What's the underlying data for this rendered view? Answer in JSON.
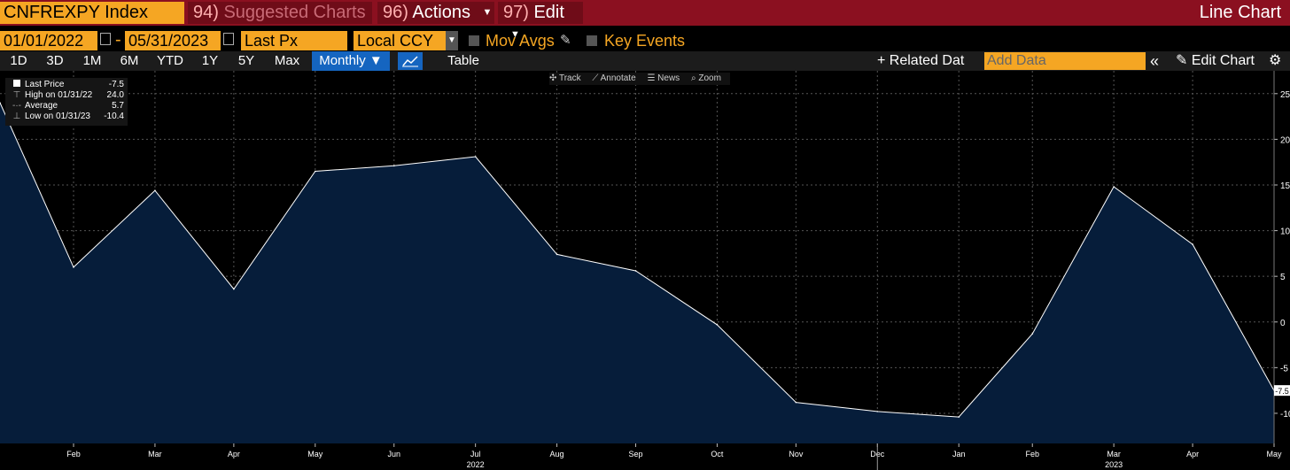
{
  "header": {
    "ticker": "CNFREXPY Index",
    "suggested_num": "94)",
    "suggested_label": "Suggested Charts",
    "actions_num": "96)",
    "actions_label": "Actions",
    "edit_num": "97)",
    "edit_label": "Edit",
    "chart_type_title": "Line Chart"
  },
  "options": {
    "start_date": "01/01/2022",
    "end_date": "05/31/2023",
    "date_separator": "-",
    "field": "Last Px",
    "currency": "Local CCY",
    "mov_avgs": "Mov Avgs",
    "key_events": "Key Events"
  },
  "toolbar": {
    "periods": [
      "1D",
      "3D",
      "1M",
      "6M",
      "YTD",
      "1Y",
      "5Y",
      "Max"
    ],
    "frequency": "Monthly ▼",
    "table_label": "Table",
    "related_data": "+ Related Dat",
    "add_data_placeholder": "Add Data",
    "collapse": "«",
    "edit_chart": "✎ Edit Chart",
    "settings_icon": "⚙"
  },
  "chart_tools": [
    "✣ Track",
    "⟋ Annotate",
    "☰ News",
    "⌕ Zoom"
  ],
  "legend": [
    {
      "label": "Last Price",
      "value": "-7.5"
    },
    {
      "label": "High on 01/31/22",
      "value": "24.0"
    },
    {
      "label": "Average",
      "value": "5.7"
    },
    {
      "label": "Low on 01/31/23",
      "value": "-10.4"
    }
  ],
  "colors": {
    "fill": "#061d3a",
    "line": "#ffffff",
    "accent": "#f5a623",
    "header_red": "#8b1020",
    "active_blue": "#1565c0"
  },
  "chart_data": {
    "type": "area",
    "series": [
      {
        "name": "Last Price",
        "x": [
          "2022-01-31",
          "2022-02-28",
          "2022-03-31",
          "2022-04-30",
          "2022-05-31",
          "2022-06-30",
          "2022-07-31",
          "2022-08-31",
          "2022-09-30",
          "2022-10-31",
          "2022-11-30",
          "2022-12-31",
          "2023-01-31",
          "2023-02-28",
          "2023-03-31",
          "2023-04-30",
          "2023-05-31"
        ],
        "values": [
          24.0,
          6.0,
          14.4,
          3.6,
          16.5,
          17.1,
          18.1,
          7.4,
          5.6,
          -0.3,
          -8.8,
          -9.8,
          -10.4,
          -1.3,
          14.8,
          8.5,
          -7.5
        ]
      }
    ],
    "xticks": [
      {
        "date": "2022-02-28",
        "label": "Feb"
      },
      {
        "date": "2022-03-31",
        "label": "Mar"
      },
      {
        "date": "2022-04-30",
        "label": "Apr"
      },
      {
        "date": "2022-05-31",
        "label": "May"
      },
      {
        "date": "2022-06-30",
        "label": "Jun"
      },
      {
        "date": "2022-07-31",
        "label": "Jul"
      },
      {
        "date": "2022-08-31",
        "label": "Aug"
      },
      {
        "date": "2022-09-30",
        "label": "Sep"
      },
      {
        "date": "2022-10-31",
        "label": "Oct"
      },
      {
        "date": "2022-11-30",
        "label": "Nov"
      },
      {
        "date": "2022-12-31",
        "label": "Dec"
      },
      {
        "date": "2023-01-31",
        "label": "Jan"
      },
      {
        "date": "2023-02-28",
        "label": "Feb"
      },
      {
        "date": "2023-03-31",
        "label": "Mar"
      },
      {
        "date": "2023-04-30",
        "label": "Apr"
      },
      {
        "date": "2023-05-31",
        "label": "May"
      }
    ],
    "year_labels": [
      {
        "date": "2022-07-31",
        "label": "2022"
      },
      {
        "date": "2023-03-31",
        "label": "2023"
      }
    ],
    "year_divider": "2022-12-31",
    "yticks": [
      25,
      20,
      15,
      10,
      5,
      0,
      -5,
      -10
    ],
    "ytick_labels": [
      "25",
      "20",
      "15",
      "10",
      "5",
      "0",
      "-5",
      "-10"
    ],
    "ylim": [
      -13.3,
      27.5
    ],
    "xlim": [
      "2022-01-31",
      "2023-05-31"
    ],
    "last_value_label": "-7.5",
    "grid": true,
    "legend_position": "top-left",
    "y_axis_side": "right"
  }
}
